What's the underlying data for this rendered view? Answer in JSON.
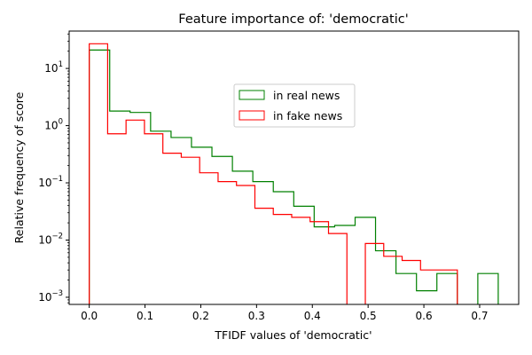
{
  "chart_data": {
    "type": "histogram-step",
    "title": "Feature importance of: 'democratic'",
    "xlabel": "TFIDF values of 'democratic'",
    "ylabel": "Relative frequency of score",
    "xlim": [
      -0.036,
      0.77
    ],
    "ylim": [
      0.00075,
      45
    ],
    "yscale": "log",
    "x_ticks": [
      0.0,
      0.1,
      0.2,
      0.3,
      0.4,
      0.5,
      0.6,
      0.7
    ],
    "x_tick_labels": [
      "0.0",
      "0.1",
      "0.2",
      "0.3",
      "0.4",
      "0.5",
      "0.6",
      "0.7"
    ],
    "y_ticks": [
      0.001,
      0.01,
      0.1,
      1,
      10
    ],
    "y_tick_base": "10",
    "y_tick_exponents": [
      "−3",
      "−2",
      "−1",
      "0",
      "1"
    ],
    "grid": false,
    "legend_position": "upper-center",
    "series": [
      {
        "name": "in real news",
        "color": "#008000",
        "bin_edges": [
          0.0,
          0.0367,
          0.0733,
          0.11,
          0.1467,
          0.1833,
          0.22,
          0.2567,
          0.2933,
          0.33,
          0.3667,
          0.4033,
          0.44,
          0.4767,
          0.5133,
          0.55,
          0.5867,
          0.6233,
          0.66,
          0.6967,
          0.7333
        ],
        "values": [
          21,
          1.8,
          1.7,
          0.8,
          0.62,
          0.42,
          0.29,
          0.16,
          0.105,
          0.07,
          0.039,
          0.017,
          0.018,
          0.025,
          0.0065,
          0.0026,
          0.0013,
          0.0026,
          0,
          0.0026
        ]
      },
      {
        "name": "in fake news",
        "color": "#ff0000",
        "bin_edges": [
          0.0,
          0.033,
          0.066,
          0.099,
          0.132,
          0.165,
          0.198,
          0.231,
          0.264,
          0.297,
          0.33,
          0.363,
          0.396,
          0.429,
          0.462,
          0.495,
          0.528,
          0.561,
          0.594,
          0.627,
          0.66
        ],
        "values": [
          27,
          0.72,
          1.25,
          0.72,
          0.33,
          0.28,
          0.15,
          0.105,
          0.09,
          0.036,
          0.028,
          0.025,
          0.021,
          0.013,
          0,
          0.0087,
          0.0052,
          0.0044,
          0.003,
          0.003
        ]
      }
    ]
  }
}
